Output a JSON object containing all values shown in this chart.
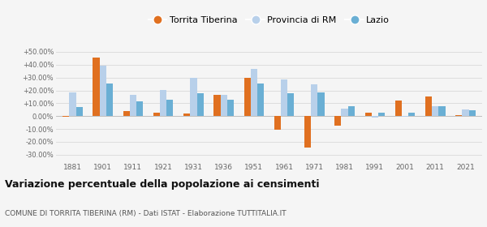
{
  "years": [
    1881,
    1901,
    1911,
    1921,
    1931,
    1936,
    1951,
    1961,
    1971,
    1981,
    1991,
    2001,
    2011,
    2021
  ],
  "torrita": [
    -0.3,
    45.5,
    4.0,
    2.5,
    2.0,
    16.5,
    29.5,
    -10.5,
    -24.5,
    -7.5,
    2.5,
    12.0,
    15.0,
    1.0
  ],
  "provincia": [
    18.5,
    39.5,
    16.5,
    20.5,
    29.5,
    16.5,
    37.0,
    28.5,
    25.0,
    6.0,
    -1.0,
    -0.5,
    7.5,
    5.5
  ],
  "lazio": [
    7.0,
    25.5,
    11.5,
    13.0,
    17.5,
    13.0,
    25.5,
    18.0,
    18.5,
    7.5,
    3.0,
    3.0,
    7.5,
    4.5
  ],
  "torrita_color": "#e07020",
  "provincia_color": "#b8d0ea",
  "lazio_color": "#6aafd4",
  "title": "Variazione percentuale della popolazione ai censimenti",
  "subtitle": "COMUNE DI TORRITA TIBERINA (RM) - Dati ISTAT - Elaborazione TUTTITALIA.IT",
  "ylim": [
    -35,
    55
  ],
  "yticks": [
    -30,
    -20,
    -10,
    0,
    10,
    20,
    30,
    40,
    50
  ],
  "ytick_labels": [
    "-30.00%",
    "-20.00%",
    "-10.00%",
    "0.00%",
    "+10.00%",
    "+20.00%",
    "+30.00%",
    "+40.00%",
    "+50.00%"
  ],
  "background_color": "#f5f5f5",
  "grid_color": "#dddddd",
  "legend_labels": [
    "Torrita Tiberina",
    "Provincia di RM",
    "Lazio"
  ]
}
